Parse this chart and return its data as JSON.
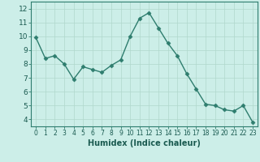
{
  "x": [
    0,
    1,
    2,
    3,
    4,
    5,
    6,
    7,
    8,
    9,
    10,
    11,
    12,
    13,
    14,
    15,
    16,
    17,
    18,
    19,
    20,
    21,
    22,
    23
  ],
  "y": [
    9.9,
    8.4,
    8.6,
    8.0,
    6.9,
    7.8,
    7.6,
    7.4,
    7.9,
    8.3,
    10.0,
    11.3,
    11.7,
    10.6,
    9.5,
    8.6,
    7.3,
    6.2,
    5.1,
    5.0,
    4.7,
    4.6,
    5.0,
    3.8
  ],
  "line_color": "#2e7d6e",
  "marker_color": "#2e7d6e",
  "bg_color": "#cceee8",
  "grid_color": "#b0d8cc",
  "xlabel": "Humidex (Indice chaleur)",
  "ylim": [
    3.5,
    12.5
  ],
  "xlim": [
    -0.5,
    23.5
  ],
  "yticks": [
    4,
    5,
    6,
    7,
    8,
    9,
    10,
    11,
    12
  ],
  "xticks": [
    0,
    1,
    2,
    3,
    4,
    5,
    6,
    7,
    8,
    9,
    10,
    11,
    12,
    13,
    14,
    15,
    16,
    17,
    18,
    19,
    20,
    21,
    22,
    23
  ],
  "tick_color": "#2e7d6e",
  "axis_color": "#2e7d6e",
  "font_color": "#1a5a50",
  "xlabel_fontsize": 7.0,
  "tick_fontsize_x": 5.5,
  "tick_fontsize_y": 6.5
}
